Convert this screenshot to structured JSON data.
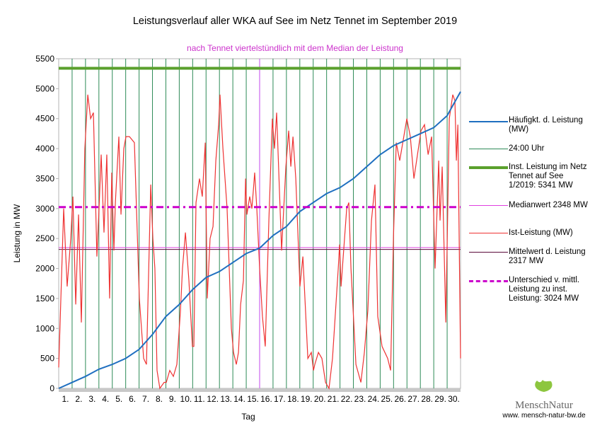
{
  "chart_data": {
    "type": "line",
    "title": "Leistungsverlauf aller WKA auf See im Netz Tennet im September 2019",
    "subtitle": "nach Tennet viertelstündlich mit dem Median der Leistung",
    "xlabel": "Tag",
    "ylabel": "Leistung in MW",
    "ylim": [
      0,
      5500
    ],
    "xlim": [
      0,
      30
    ],
    "yticks": [
      "0",
      "500",
      "1000",
      "1500",
      "2000",
      "2500",
      "3000",
      "3500",
      "4000",
      "4500",
      "5000",
      "5500"
    ],
    "xticks": [
      "1.",
      "2.",
      "3.",
      "4.",
      "5.",
      "6.",
      "7.",
      "8.",
      "9.",
      "10.",
      "11.",
      "12.",
      "13.",
      "14.",
      "15.",
      "16.",
      "17.",
      "18.",
      "19.",
      "20.",
      "21.",
      "22.",
      "23.",
      "24.",
      "25.",
      "26.",
      "27.",
      "28.",
      "29.",
      "30."
    ],
    "colors": {
      "freq": "#1f6fc0",
      "day": "#2e8b57",
      "installed": "#5aa02c",
      "median": "#e040e0",
      "actual": "#ee3333",
      "mean": "#5a0a3a",
      "diff": "#cc00cc"
    },
    "series": [
      {
        "name": "Häufigkt. d. Leistung (MW)",
        "x": [
          0,
          1,
          2,
          3,
          4,
          5,
          6,
          7,
          8,
          9,
          10,
          11,
          12,
          13,
          14,
          15,
          16,
          17,
          18,
          19,
          20,
          21,
          22,
          23,
          24,
          25,
          26,
          27,
          28,
          29,
          29.5,
          30
        ],
        "values": [
          0,
          100,
          200,
          320,
          400,
          500,
          650,
          900,
          1200,
          1400,
          1650,
          1850,
          1950,
          2100,
          2250,
          2340,
          2550,
          2700,
          2950,
          3100,
          3250,
          3350,
          3500,
          3700,
          3900,
          4050,
          4150,
          4250,
          4350,
          4550,
          4750,
          4950
        ]
      },
      {
        "name": "Ist-Leistung (MW)",
        "x": [
          0,
          0.37,
          0.63,
          0.9,
          1.06,
          1.27,
          1.48,
          1.69,
          1.95,
          2.17,
          2.38,
          2.59,
          2.85,
          3.01,
          3.17,
          3.38,
          3.59,
          3.8,
          3.96,
          4.12,
          4.23,
          4.49,
          4.65,
          4.86,
          5.02,
          5.28,
          5.65,
          6.02,
          6.34,
          6.55,
          6.87,
          7.03,
          7.18,
          7.34,
          7.55,
          7.87,
          8.03,
          8.29,
          8.56,
          8.82,
          9.09,
          9.24,
          9.46,
          9.72,
          9.98,
          10.09,
          10.25,
          10.51,
          10.72,
          10.94,
          11.09,
          11.3,
          11.52,
          11.73,
          11.94,
          12.04,
          12.26,
          12.57,
          12.89,
          13.05,
          13.26,
          13.42,
          13.58,
          13.79,
          13.95,
          14.05,
          14.26,
          14.42,
          14.53,
          14.63,
          14.79,
          15.0,
          15.21,
          15.42,
          15.69,
          15.95,
          16.11,
          16.27,
          16.64,
          16.96,
          17.17,
          17.33,
          17.49,
          17.7,
          18.01,
          18.23,
          18.6,
          18.86,
          19.02,
          19.12,
          19.39,
          19.65,
          19.92,
          20.18,
          20.44,
          20.87,
          20.97,
          21.08,
          21.5,
          21.66,
          21.82,
          22.19,
          22.56,
          22.82,
          23.08,
          23.35,
          23.61,
          23.82,
          24.14,
          24.56,
          24.78,
          24.99,
          25.2,
          25.46,
          25.99,
          26.25,
          26.52,
          27.05,
          27.31,
          27.58,
          27.84,
          28.1,
          28.37,
          28.47,
          28.63,
          28.9,
          29.16,
          29.42,
          29.58,
          29.69,
          29.8,
          30
        ],
        "values": [
          350,
          3000,
          1700,
          2500,
          3200,
          1400,
          2900,
          1100,
          4000,
          4900,
          4500,
          4600,
          2200,
          3000,
          3900,
          2600,
          3900,
          1500,
          3600,
          2300,
          3100,
          4200,
          2900,
          4000,
          4200,
          4200,
          4100,
          1500,
          500,
          400,
          3400,
          2500,
          2000,
          300,
          0,
          100,
          100,
          300,
          200,
          400,
          1300,
          2000,
          2600,
          1800,
          700,
          700,
          3100,
          3500,
          3200,
          4100,
          1500,
          2500,
          2700,
          3800,
          4400,
          4900,
          4000,
          3000,
          1000,
          600,
          400,
          600,
          1400,
          1800,
          3500,
          2900,
          3200,
          3000,
          3300,
          3600,
          3000,
          2000,
          1200,
          700,
          2800,
          4500,
          4000,
          4600,
          2300,
          3700,
          4300,
          3700,
          4200,
          3500,
          1700,
          2200,
          500,
          600,
          300,
          400,
          600,
          500,
          100,
          0,
          500,
          2000,
          2400,
          1700,
          3000,
          3100,
          2000,
          400,
          100,
          600,
          1300,
          2800,
          3400,
          1200,
          700,
          500,
          300,
          2500,
          4100,
          3800,
          4500,
          4200,
          3500,
          4300,
          4400,
          3900,
          4200,
          2000,
          3800,
          2800,
          3700,
          1100,
          4500,
          4900,
          4800,
          3800,
          4400,
          500
        ]
      },
      {
        "name": "24:00 Uhr"
      },
      {
        "name": "Inst. Leistung im Netz Tennet auf See 1/2019: 5341  MW",
        "value": 5341
      },
      {
        "name": "Medianwert 2348 MW",
        "value": 2348
      },
      {
        "name": "Mittelwert d. Leistung 2317 MW",
        "value": 2317
      },
      {
        "name": "Unterschied v. mittl. Leistung zu inst. Leistung: 3024 MW",
        "value": 3024
      }
    ],
    "marker_day": 15,
    "legend": "right"
  },
  "logo": {
    "name": "MenschNatur",
    "url": "www. mensch-natur-bw.de"
  }
}
